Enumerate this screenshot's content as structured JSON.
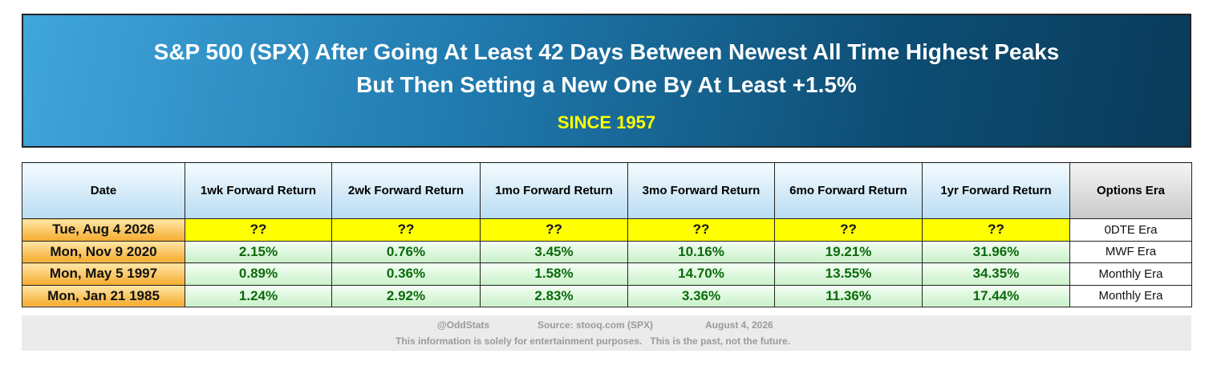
{
  "header": {
    "title_line1": "S&P 500 (SPX) After Going At Least 42 Days Between Newest All Time Highest Peaks",
    "title_line2": "But Then Setting a New One By At Least +1.5%",
    "subtitle": "SINCE 1957"
  },
  "table": {
    "headers": [
      "Date",
      "1wk Forward Return",
      "2wk Forward Return",
      "1mo Forward Return",
      "3mo Forward Return",
      "6mo Forward Return",
      "1yr Forward Return",
      "Options Era"
    ],
    "rows": [
      [
        "Tue, Aug 4 2026",
        "??",
        "??",
        "??",
        "??",
        "??",
        "??",
        "0DTE Era"
      ],
      [
        "Mon, Nov 9 2020",
        "2.15%",
        "0.76%",
        "3.45%",
        "10.16%",
        "19.21%",
        "31.96%",
        "MWF Era"
      ],
      [
        "Mon, May 5 1997",
        "0.89%",
        "0.36%",
        "1.58%",
        "14.70%",
        "13.55%",
        "34.35%",
        "Monthly Era"
      ],
      [
        "Mon, Jan 21 1985",
        "1.24%",
        "2.92%",
        "2.83%",
        "3.36%",
        "11.36%",
        "17.44%",
        "Monthly Era"
      ]
    ]
  },
  "footer": {
    "handle": "@OddStats",
    "source": "Source: stooq.com (SPX)",
    "date": "August 4, 2026",
    "disclaimer": "This information is solely for entertainment purposes.   This is the past, not the future."
  }
}
